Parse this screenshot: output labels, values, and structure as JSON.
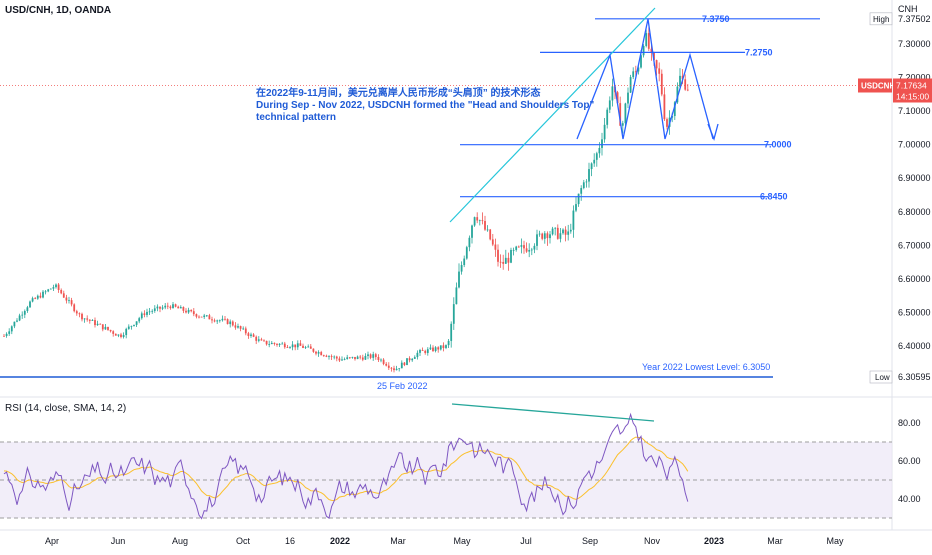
{
  "header": {
    "symbol_title": "USD/CNH, 1D, OANDA",
    "currency": "CNH"
  },
  "price_scale": {
    "ticks": [
      "7.30000",
      "7.20000",
      "7.10000",
      "7.00000",
      "6.90000",
      "6.80000",
      "6.70000",
      "6.60000",
      "6.50000",
      "6.40000"
    ],
    "high_tag": "High",
    "high_value": "7.37502",
    "low_tag": "Low",
    "low_value": "6.30595",
    "symbol_tag": "USDCNH",
    "last_price": "7.17634",
    "countdown": "14:15:00"
  },
  "levels": [
    {
      "label": "7.3750",
      "value": 7.375
    },
    {
      "label": "7.2750",
      "value": 7.275
    },
    {
      "label": "7.0000",
      "value": 7.0
    },
    {
      "label": "6.8450",
      "value": 6.845
    }
  ],
  "annotations": {
    "chinese": "在2022年9-11月间，美元兑离岸人民币形成“头肩顶” 的技术形态",
    "english_line1": "During Sep - Nov 2022, USDCNH formed the \"Head and Shoulders Top\"",
    "english_line2": "technical pattern",
    "lowest_level": "Year 2022 Lowest Level: 6.3050",
    "low_date": "25 Feb 2022"
  },
  "rsi": {
    "title": "RSI (14, close, SMA, 14, 2)",
    "ticks": [
      "80.00",
      "60.00",
      "40.00"
    ]
  },
  "time_axis": [
    "Apr",
    "Jun",
    "Aug",
    "Oct",
    "16",
    "2022",
    "Mar",
    "May",
    "Jul",
    "Sep",
    "Nov",
    "2023",
    "Mar",
    "May"
  ],
  "colors": {
    "up": "#26a69a",
    "down": "#ef5350",
    "pattern": "#2962ff",
    "trendline": "#26c6da",
    "rsi_line": "#7e57c2",
    "rsi_ma": "#fbc02d"
  },
  "chart_data": {
    "type": "candlestick",
    "title": "USD/CNH, 1D, OANDA",
    "x": [
      "2021-03",
      "2021-04",
      "2021-05",
      "2021-06",
      "2021-07",
      "2021-08",
      "2021-09",
      "2021-10",
      "2021-11",
      "2021-12",
      "2022-01",
      "2022-02",
      "2022-03",
      "2022-04",
      "2022-05",
      "2022-06",
      "2022-07",
      "2022-08",
      "2022-09",
      "2022-10",
      "2022-11"
    ],
    "close": [
      6.47,
      6.56,
      6.44,
      6.46,
      6.48,
      6.48,
      6.46,
      6.4,
      6.39,
      6.38,
      6.36,
      6.33,
      6.37,
      6.62,
      6.7,
      6.7,
      6.75,
      6.84,
      7.14,
      7.25,
      7.18
    ],
    "ylim": [
      6.3,
      7.39
    ],
    "horizontal_levels": [
      7.375,
      7.275,
      7.0,
      6.845,
      6.305
    ],
    "rsi_ylim": [
      25,
      92
    ]
  }
}
